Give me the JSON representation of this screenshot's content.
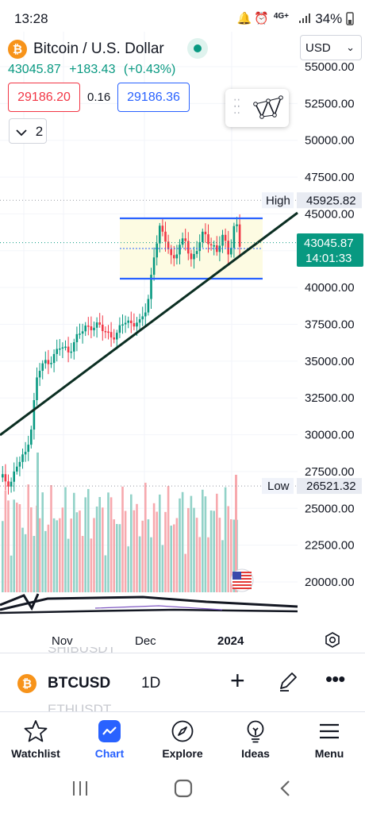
{
  "status_bar": {
    "time": "13:28",
    "network": "4G+",
    "battery": "34%"
  },
  "symbol": {
    "name": "Bitcoin / U.S. Dollar",
    "coin_icon_char": "₿",
    "coin_color": "#f7931a"
  },
  "price_line": {
    "last": "43045.87",
    "change": "+183.43",
    "change_pct": "(+0.43%)"
  },
  "quote": {
    "sell": "29186.20",
    "spread": "0.16",
    "buy": "29186.36"
  },
  "currency": {
    "selected": "USD"
  },
  "indicators_count": "2",
  "price_axis": {
    "ticks": [
      "55000.00",
      "52500.00",
      "50000.00",
      "47500.00",
      "45000.00",
      "42500.00",
      "40000.00",
      "37500.00",
      "35000.00",
      "32500.00",
      "30000.00",
      "27500.00",
      "25000.00",
      "22500.00",
      "20000.00"
    ],
    "high_label": "High",
    "high_value": "45925.82",
    "low_label": "Low",
    "low_value": "26521.32",
    "current_price": "43045.87",
    "countdown": "14:01:33"
  },
  "time_axis": {
    "labels": [
      "Nov",
      "Dec",
      "2024"
    ]
  },
  "ghost_rows": [
    "SHIBUSDT",
    "ETHUSDT"
  ],
  "toolbar": {
    "ticker": "BTCUSD",
    "interval": "1D"
  },
  "nav": [
    {
      "label": "Watchlist"
    },
    {
      "label": "Chart"
    },
    {
      "label": "Explore"
    },
    {
      "label": "Ideas"
    },
    {
      "label": "Menu"
    }
  ],
  "colors": {
    "up": "#089981",
    "down": "#f23645",
    "accent": "#2962ff",
    "vol_up": "#92d2c8",
    "vol_down": "#f7a9ae",
    "range_fill": "#fdfbe2"
  }
}
